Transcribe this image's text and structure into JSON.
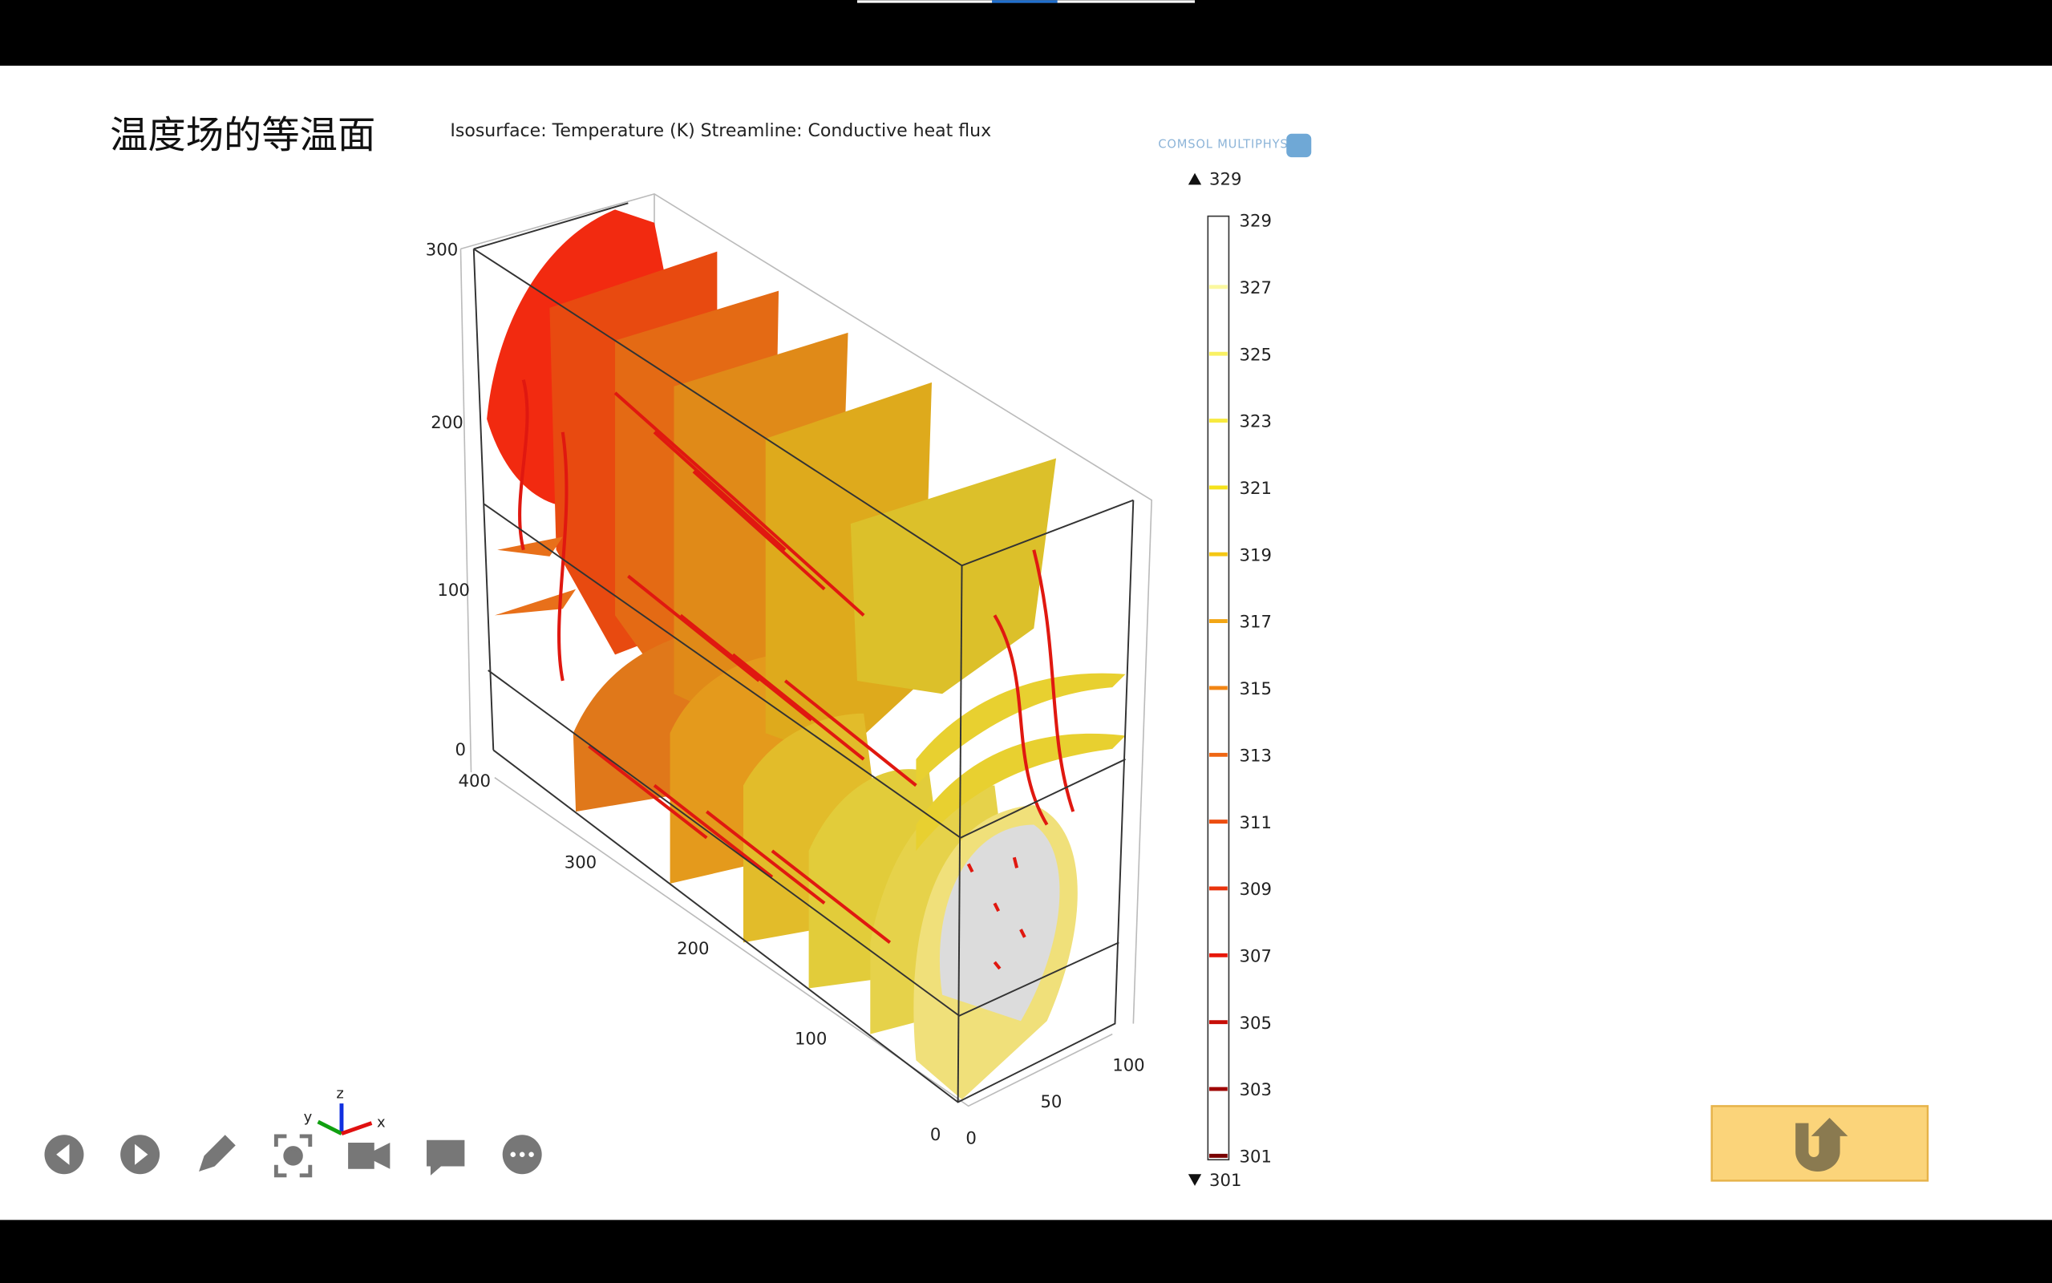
{
  "slide": {
    "title": "温度场的等温面"
  },
  "plot": {
    "title": "Isosurface: Temperature (K)  Streamline: Conductive heat flux",
    "logo": "COMSOL MULTIPHYSICS",
    "z_ticks": [
      300,
      200,
      100,
      0
    ],
    "y_ticks": [
      400,
      300,
      200,
      100,
      0
    ],
    "x_ticks": [
      0,
      50,
      100
    ],
    "colorbar": {
      "max": 329,
      "min": 301,
      "ticks": [
        329,
        327,
        325,
        323,
        321,
        319,
        317,
        315,
        313,
        311,
        309,
        307,
        305,
        303,
        301
      ]
    }
  }
}
